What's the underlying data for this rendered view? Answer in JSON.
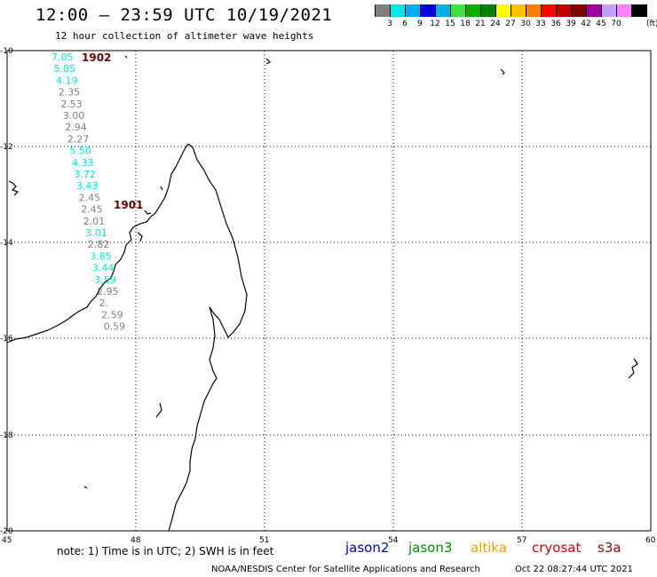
{
  "header": {
    "title": "12:00 – 23:59 UTC 10/19/2021",
    "subtitle": "12 hour collection of altimeter wave heights"
  },
  "color_scale": {
    "unit": "(ft)",
    "colors": [
      "#808080",
      "#00e5e5",
      "#00aaff",
      "#0000e0",
      "#00b0e0",
      "#40e040",
      "#00b000",
      "#008000",
      "#ffff00",
      "#ffc000",
      "#ff8000",
      "#ff0000",
      "#c00000",
      "#800000",
      "#a000a0",
      "#c0a0ff",
      "#ff80ff",
      "#000000"
    ],
    "labels": [
      "3",
      "6",
      "9",
      "12",
      "15",
      "18",
      "21",
      "24",
      "27",
      "30",
      "33",
      "36",
      "39",
      "42",
      "45",
      "70"
    ]
  },
  "axes": {
    "lat_labels": [
      "-10",
      "-12",
      "-14",
      "-16",
      "-18",
      "-20"
    ],
    "lon_labels": [
      "45",
      "48",
      "51",
      "54",
      "57",
      "60"
    ]
  },
  "buoys": [
    {
      "id": "1902"
    },
    {
      "id": "1901"
    }
  ],
  "wave_heights": [
    {
      "v": "7.05",
      "c": "#00e5e5"
    },
    {
      "v": "5.85",
      "c": "#00e5e5"
    },
    {
      "v": "4.19",
      "c": "#00e5e5"
    },
    {
      "v": "2.35",
      "c": "#808080"
    },
    {
      "v": "2.53",
      "c": "#808080"
    },
    {
      "v": "3.00",
      "c": "#808080"
    },
    {
      "v": "2.94",
      "c": "#808080"
    },
    {
      "v": "2.27",
      "c": "#808080"
    },
    {
      "v": "5.50",
      "c": "#00e5e5"
    },
    {
      "v": "4.33",
      "c": "#00e5e5"
    },
    {
      "v": "3.72",
      "c": "#00e5e5"
    },
    {
      "v": "3.43",
      "c": "#00e5e5"
    },
    {
      "v": "2.45",
      "c": "#808080"
    },
    {
      "v": "2.45",
      "c": "#808080"
    },
    {
      "v": "2.01",
      "c": "#808080"
    },
    {
      "v": "3.01",
      "c": "#00e5e5"
    },
    {
      "v": "2.82",
      "c": "#808080"
    },
    {
      "v": "3.85",
      "c": "#00e5e5"
    },
    {
      "v": "3.44",
      "c": "#00e5e5"
    },
    {
      "v": "3.59",
      "c": "#00e5e5"
    },
    {
      "v": "2.95",
      "c": "#808080"
    },
    {
      "v": "2.",
      "c": "#808080"
    },
    {
      "v": "2.59",
      "c": "#808080"
    },
    {
      "v": "0.59",
      "c": "#808080"
    }
  ],
  "note": "note: 1) Time is in UTC; 2) SWH is in feet",
  "satellites": [
    {
      "name": "jason2",
      "color": "#0000cc"
    },
    {
      "name": "jason3",
      "color": "#009000"
    },
    {
      "name": "altika",
      "color": "#ff9900"
    },
    {
      "name": "cryosat",
      "color": "#dd0000"
    },
    {
      "name": "s3a",
      "color": "#990000"
    }
  ],
  "footer": {
    "credit": "NOAA/NESDIS Center for Satellite Applications and Research",
    "timestamp": "Oct 22 08:27:44 UTC 2021"
  }
}
